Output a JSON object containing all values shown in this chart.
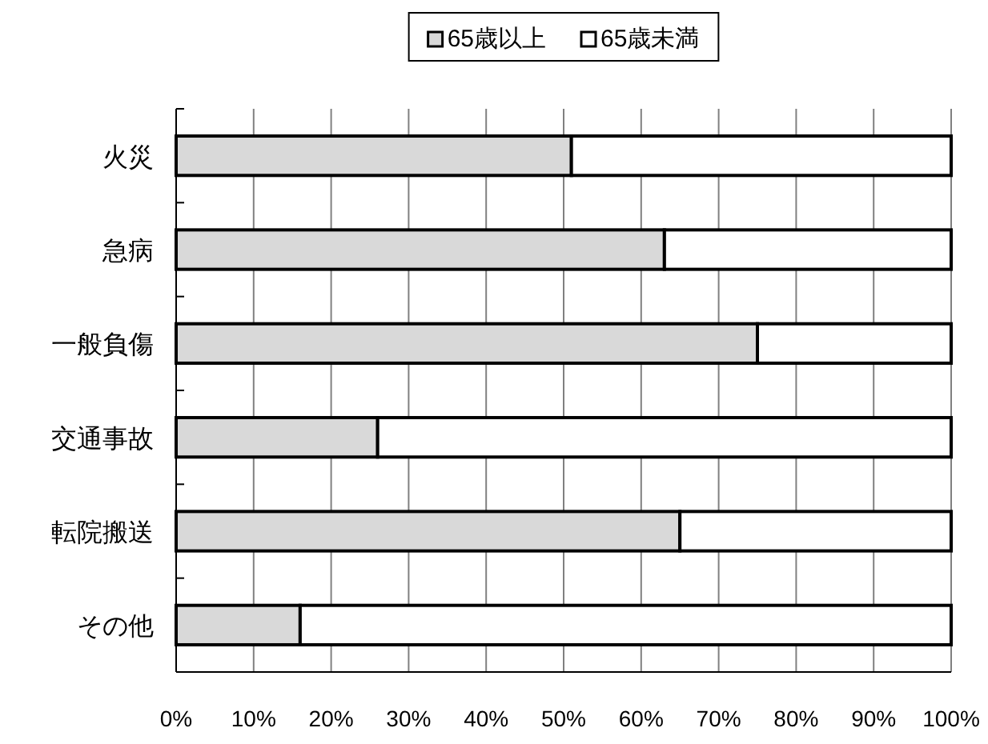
{
  "chart_data": {
    "type": "bar",
    "orientation": "horizontal",
    "stacked": true,
    "categories": [
      "火災",
      "急病",
      "一般負傷",
      "交通事故",
      "転院搬送",
      "その他"
    ],
    "series": [
      {
        "name": "65歳以上",
        "color": "#d9d9d9",
        "values": [
          51,
          63,
          75,
          26,
          65,
          16
        ]
      },
      {
        "name": "65歳未満",
        "color": "#ffffff",
        "values": [
          49,
          37,
          25,
          74,
          35,
          84
        ]
      }
    ],
    "xlim": [
      0,
      100
    ],
    "xticks": [
      {
        "value": 0,
        "label": "0%"
      },
      {
        "value": 10,
        "label": "10%"
      },
      {
        "value": 20,
        "label": "20%"
      },
      {
        "value": 30,
        "label": "30%"
      },
      {
        "value": 40,
        "label": "40%"
      },
      {
        "value": 50,
        "label": "50%"
      },
      {
        "value": 60,
        "label": "60%"
      },
      {
        "value": 70,
        "label": "70%"
      },
      {
        "value": 80,
        "label": "80%"
      },
      {
        "value": 90,
        "label": "90%"
      },
      {
        "value": 100,
        "label": "100%"
      }
    ],
    "grid": "x",
    "legend": "top"
  }
}
